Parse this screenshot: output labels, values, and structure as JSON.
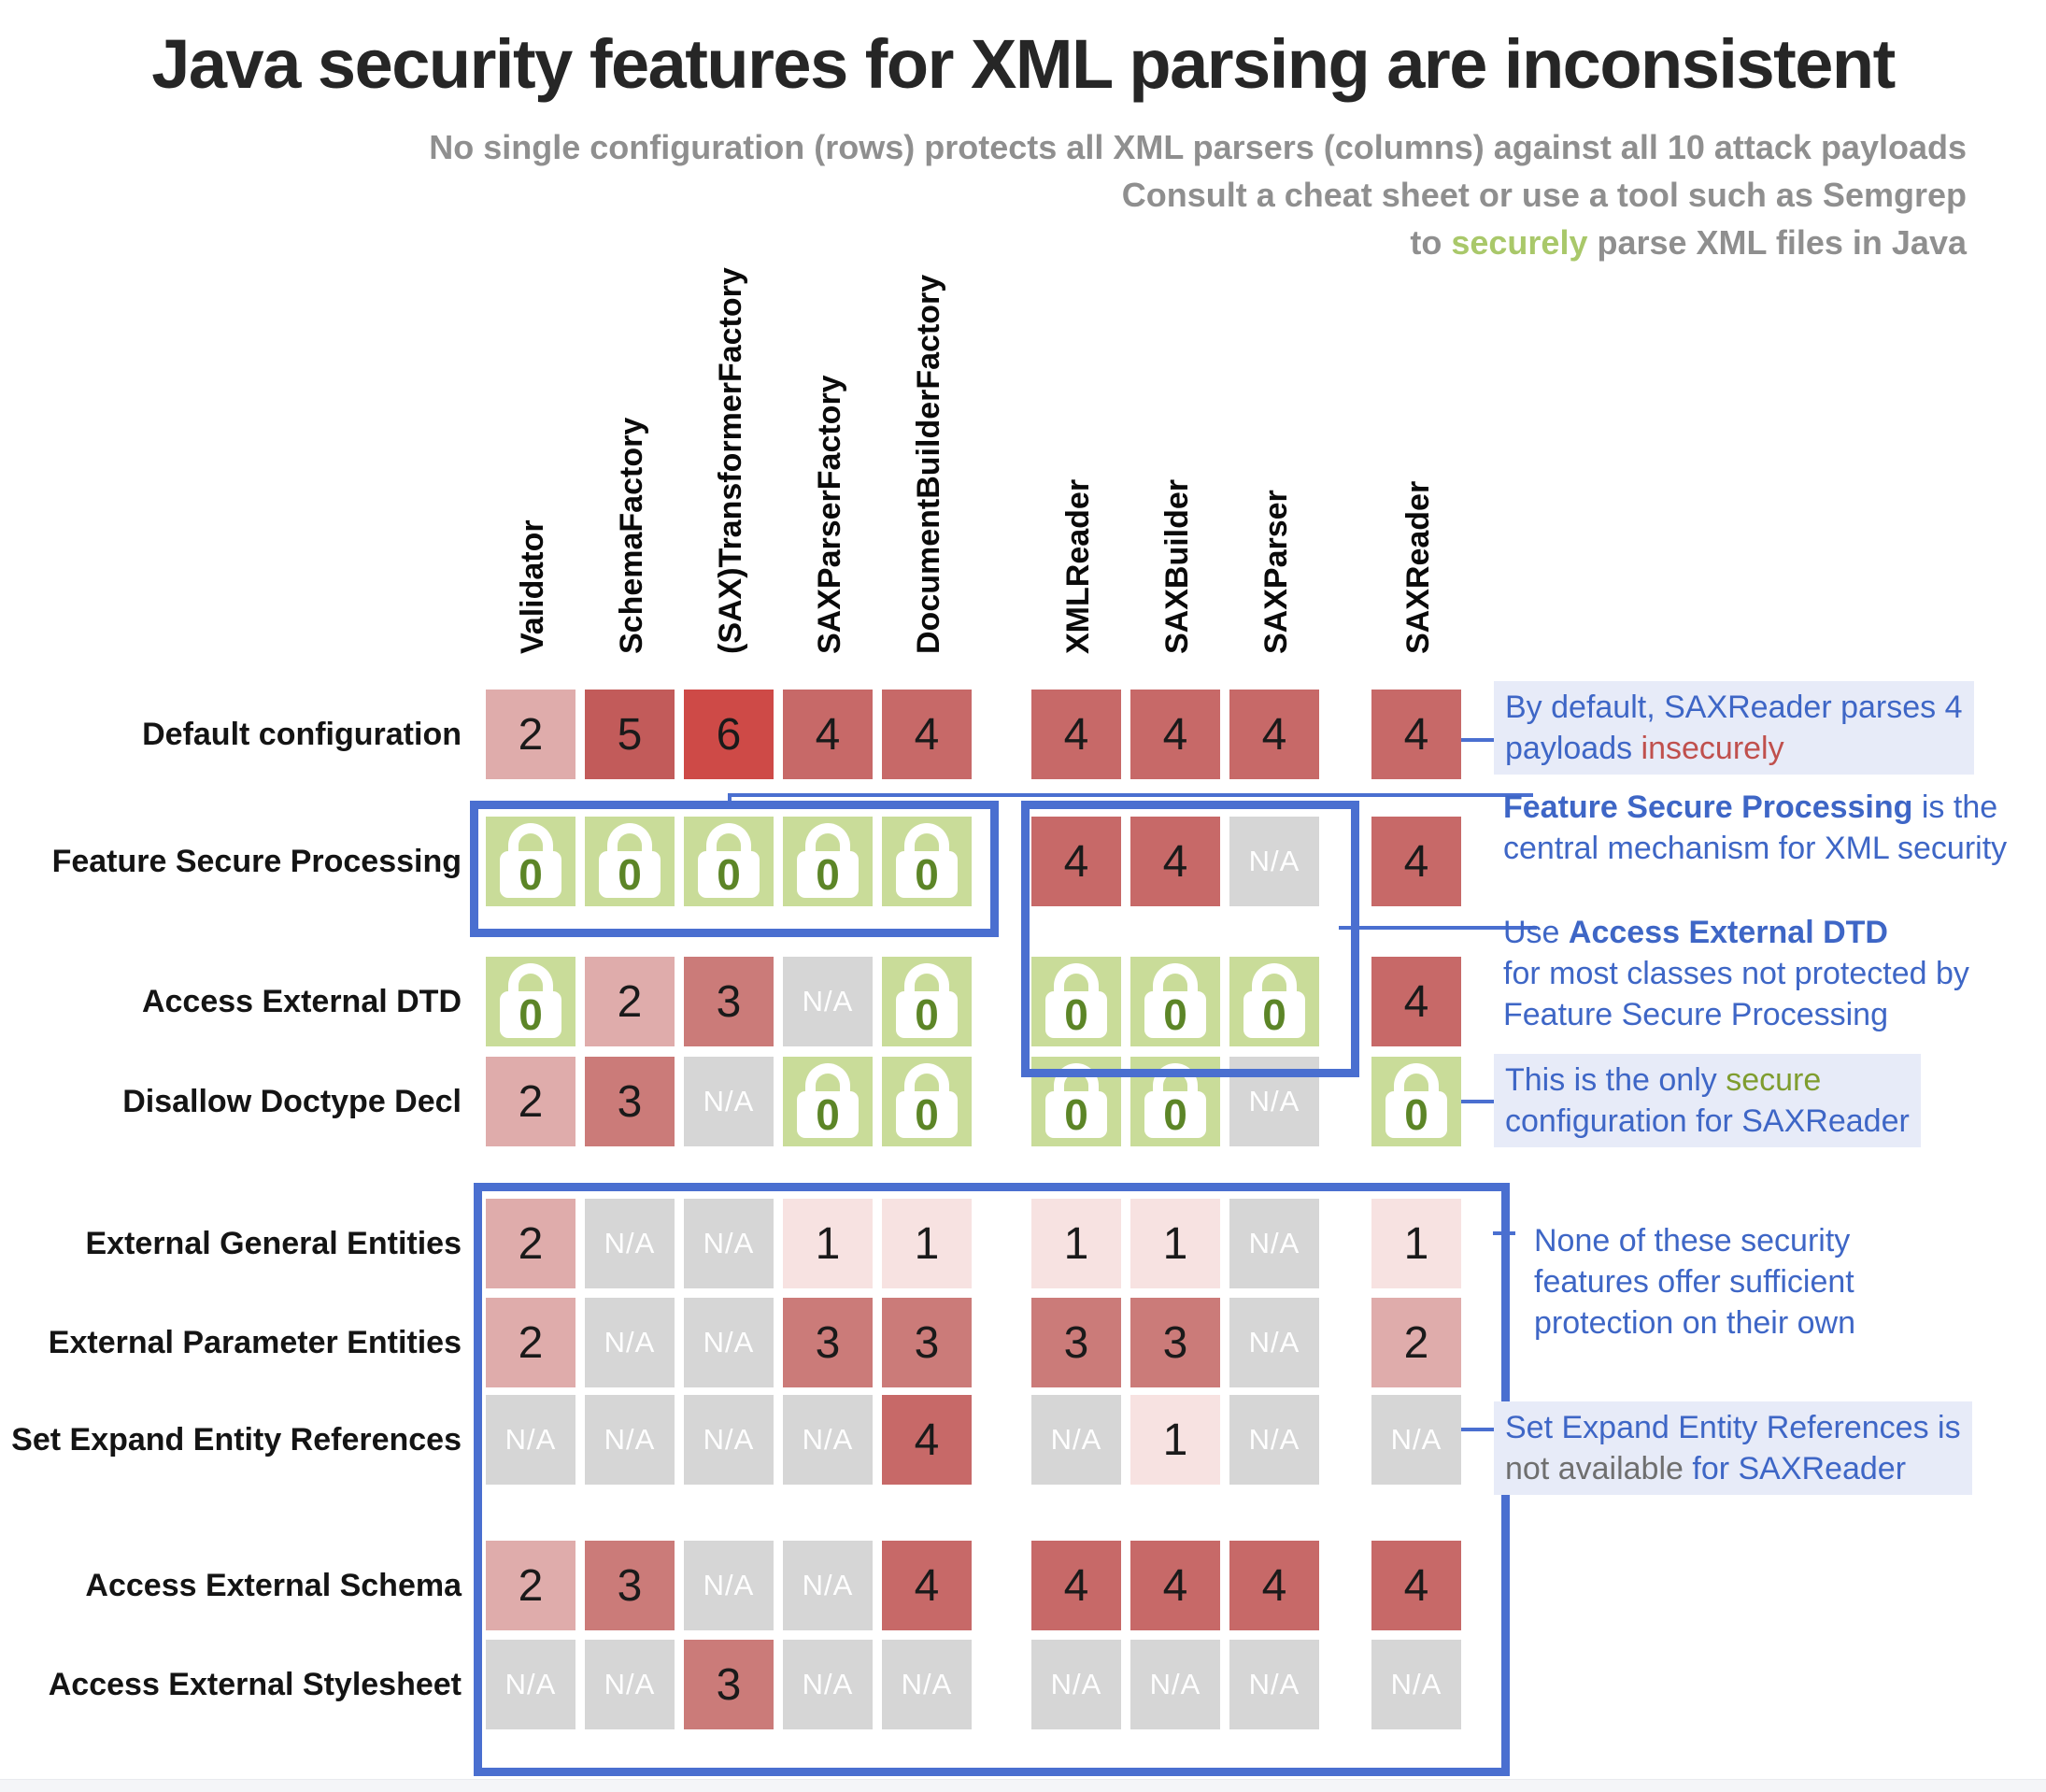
{
  "title": "Java security features for XML parsing are inconsistent",
  "subtitle": {
    "line1": "No single configuration (rows) protects all XML parsers (columns) against all 10 attack payloads",
    "line2": "Consult a cheat sheet or use a tool such as Semgrep",
    "line3_parts": [
      {
        "text": "to "
      },
      {
        "text": "securely",
        "color": "lime"
      },
      {
        "text": " parse XML files in Java"
      }
    ]
  },
  "chart_data": {
    "type": "heatmap",
    "title": "Java security features for XML parsing are inconsistent",
    "columns": [
      "Validator",
      "SchemaFactory",
      "(SAX)TransformerFactory",
      "SAXParserFactory",
      "DocumentBuilderFactory",
      "XMLReader",
      "SAXBuilder",
      "SAXParser",
      "SAXReader"
    ],
    "column_groups": [
      [
        "Validator",
        "SchemaFactory",
        "(SAX)TransformerFactory",
        "SAXParserFactory",
        "DocumentBuilderFactory"
      ],
      [
        "XMLReader",
        "SAXBuilder",
        "SAXParser"
      ],
      [
        "SAXReader"
      ]
    ],
    "lock_zero_label": "0",
    "na_label": "N/A",
    "rows": [
      {
        "label": "Default configuration",
        "values": [
          "2",
          "5",
          "6",
          "4",
          "4",
          "4",
          "4",
          "4",
          "4"
        ]
      },
      {
        "label": "Feature Secure Processing",
        "values": [
          "LOCK0",
          "LOCK0",
          "LOCK0",
          "LOCK0",
          "LOCK0",
          "4",
          "4",
          "N/A",
          "4"
        ]
      },
      {
        "label": "Access External DTD",
        "values": [
          "LOCK0",
          "2",
          "3",
          "N/A",
          "LOCK0",
          "LOCK0",
          "LOCK0",
          "LOCK0",
          "4"
        ]
      },
      {
        "label": "Disallow Doctype Decl",
        "values": [
          "2",
          "3",
          "N/A",
          "LOCK0",
          "LOCK0",
          "LOCK0",
          "LOCK0",
          "N/A",
          "LOCK0"
        ]
      },
      {
        "label": "External General Entities",
        "values": [
          "2",
          "N/A",
          "N/A",
          "1",
          "1",
          "1",
          "1",
          "N/A",
          "1"
        ]
      },
      {
        "label": "External Parameter Entities",
        "values": [
          "2",
          "N/A",
          "N/A",
          "3",
          "3",
          "3",
          "3",
          "N/A",
          "2"
        ]
      },
      {
        "label": "Set Expand Entity References",
        "values": [
          "N/A",
          "N/A",
          "N/A",
          "N/A",
          "4",
          "N/A",
          "1",
          "N/A",
          "N/A"
        ]
      },
      {
        "label": "Access External Schema",
        "values": [
          "2",
          "3",
          "N/A",
          "N/A",
          "4",
          "4",
          "4",
          "4",
          "4"
        ]
      },
      {
        "label": "Access External Stylesheet",
        "values": [
          "N/A",
          "N/A",
          "3",
          "N/A",
          "N/A",
          "N/A",
          "N/A",
          "N/A",
          "N/A"
        ]
      }
    ]
  },
  "annotations": [
    {
      "id": "default-saxreader",
      "highlight": true,
      "lines": [
        [
          {
            "text": "By default, SAXReader parses 4"
          }
        ],
        [
          {
            "text": "payloads "
          },
          {
            "text": "insecurely",
            "color": "red"
          }
        ]
      ]
    },
    {
      "id": "fsp-central-mechanism",
      "highlight": false,
      "lines": [
        [
          {
            "text": "Feature Secure Processing",
            "bold": true
          },
          {
            "text": " is the"
          }
        ],
        [
          {
            "text": "central mechanism for XML security"
          }
        ]
      ]
    },
    {
      "id": "use-access-external-dtd",
      "highlight": false,
      "lines": [
        [
          {
            "text": "Use "
          },
          {
            "text": "Access External DTD",
            "bold": true
          }
        ],
        [
          {
            "text": "for most classes not protected by"
          }
        ],
        [
          {
            "text": "Feature Secure Processing"
          }
        ]
      ]
    },
    {
      "id": "only-secure-saxreader",
      "highlight": true,
      "lines": [
        [
          {
            "text": "This is the only "
          },
          {
            "text": "secure",
            "color": "green"
          }
        ],
        [
          {
            "text": "configuration for SAXReader"
          }
        ]
      ]
    },
    {
      "id": "none-sufficient",
      "highlight": false,
      "lines": [
        [
          {
            "text": "None of these security"
          }
        ],
        [
          {
            "text": "features offer sufficient"
          }
        ],
        [
          {
            "text": "protection on their own"
          }
        ]
      ]
    },
    {
      "id": "seer-not-available",
      "highlight": true,
      "lines": [
        [
          {
            "text": "Set Expand Entity References is"
          }
        ],
        [
          {
            "text": "not available",
            "color": "gray"
          },
          {
            "text": " for SAXReader"
          }
        ]
      ]
    }
  ],
  "colors": {
    "accent_blue": "#4a6fd0",
    "annotation_blue": "#3e66c6",
    "annotation_bg": "#e7ebf8",
    "insecure_red": "#c0504d",
    "secure_green": "#7f9d2f",
    "securely_lime": "#a9c86a",
    "gray_text": "#6f6f6f",
    "title_color": "#262626",
    "subtitle_gray": "#8f8f8f",
    "value_colors": {
      "1": "#f7e2e1",
      "2": "#dfacab",
      "3": "#cb7b79",
      "4": "#c76968",
      "5": "#c25b5a",
      "6": "#ce4a47"
    },
    "na_bg": "#d6d6d6",
    "na_text": "#ffffff",
    "lock_bg": "#c9dc99",
    "lock_zero": "#5c8527"
  }
}
